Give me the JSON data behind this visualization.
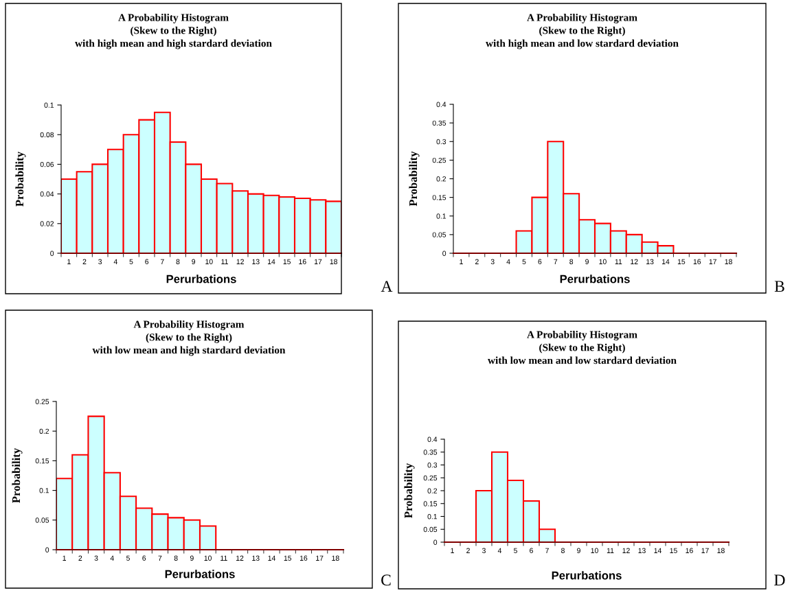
{
  "chart_data": [
    {
      "type": "bar",
      "title": "A Probability Histogram\n(Skew to the Right)\nwith high mean and high stardard deviation",
      "xlabel": "Perurbations",
      "ylabel": "Probability",
      "categories": [
        "1",
        "2",
        "3",
        "4",
        "5",
        "6",
        "7",
        "8",
        "9",
        "10",
        "11",
        "12",
        "13",
        "14",
        "15",
        "16",
        "17",
        "18"
      ],
      "values": [
        0.05,
        0.055,
        0.06,
        0.07,
        0.08,
        0.09,
        0.095,
        0.075,
        0.06,
        0.05,
        0.047,
        0.042,
        0.04,
        0.039,
        0.038,
        0.037,
        0.036,
        0.035
      ],
      "color": "#ccffff",
      "ylim": [
        0,
        0.1
      ],
      "yticks": [
        0,
        0.02,
        0.04,
        0.06,
        0.08,
        0.1
      ],
      "annotations": [
        "A"
      ]
    },
    {
      "type": "bar",
      "title": "A Probability Histogram\n(Skew to the Right)\nwith high mean and low stardard deviation",
      "xlabel": "Perurbations",
      "ylabel": "Probability",
      "categories": [
        "1",
        "2",
        "3",
        "4",
        "5",
        "6",
        "7",
        "8",
        "9",
        "10",
        "11",
        "12",
        "13",
        "14",
        "15",
        "16",
        "17",
        "18"
      ],
      "values": [
        null,
        null,
        null,
        null,
        0.06,
        0.15,
        0.3,
        0.16,
        0.09,
        0.08,
        0.06,
        0.05,
        0.03,
        0.02,
        null,
        null,
        null,
        null
      ],
      "color": "#ccffff",
      "ylim": [
        0,
        0.4
      ],
      "yticks": [
        0,
        0.05,
        0.1,
        0.15,
        0.2,
        0.25,
        0.3,
        0.35,
        0.4
      ],
      "annotations": [
        "B"
      ]
    },
    {
      "type": "bar",
      "title": "A Probability Histogram\n(Skew to the Right)\nwith low mean and high stardard deviation",
      "xlabel": "Perurbations",
      "ylabel": "Probability",
      "categories": [
        "1",
        "2",
        "3",
        "4",
        "5",
        "6",
        "7",
        "8",
        "9",
        "10",
        "11",
        "12",
        "13",
        "14",
        "15",
        "16",
        "17",
        "18"
      ],
      "values": [
        0.12,
        0.16,
        0.225,
        0.13,
        0.09,
        0.07,
        0.06,
        0.054,
        0.05,
        0.04,
        null,
        null,
        null,
        null,
        null,
        null,
        null,
        null
      ],
      "color": "#ccffff",
      "ylim": [
        0,
        0.25
      ],
      "yticks": [
        0,
        0.05,
        0.1,
        0.15,
        0.2,
        0.25
      ],
      "annotations": [
        "C"
      ]
    },
    {
      "type": "bar",
      "title": "A Probability Histogram\n(Skew to the Right)\nwith low mean and low stardard deviation",
      "xlabel": "Perurbations",
      "ylabel": "Probability",
      "categories": [
        "1",
        "2",
        "3",
        "4",
        "5",
        "6",
        "7",
        "8",
        "9",
        "10",
        "11",
        "12",
        "13",
        "14",
        "15",
        "16",
        "17",
        "18"
      ],
      "values": [
        null,
        null,
        0.2,
        0.35,
        0.24,
        0.16,
        0.05,
        null,
        null,
        null,
        null,
        null,
        null,
        null,
        null,
        null,
        null,
        null
      ],
      "color": "#ccffff",
      "ylim": [
        0,
        0.4
      ],
      "yticks": [
        0,
        0.05,
        0.1,
        0.15,
        0.2,
        0.25,
        0.3,
        0.35,
        0.4
      ],
      "annotations": [
        "D"
      ]
    }
  ]
}
